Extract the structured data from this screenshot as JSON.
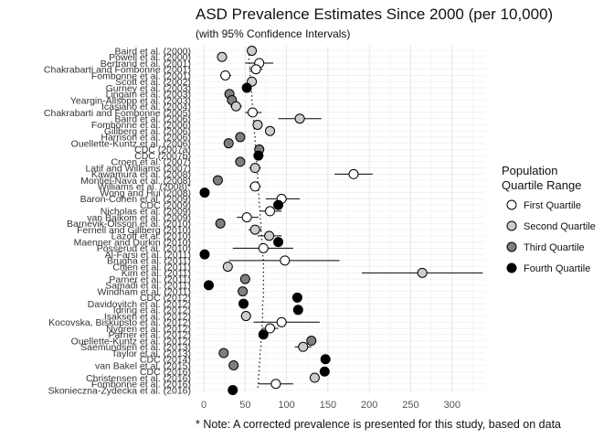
{
  "chart_data": {
    "type": "scatter",
    "title": "ASD Prevalence Estimates Since 2000 (per 10,000)",
    "subtitle": "(with 95% Confidence Intervals)",
    "xlabel": "",
    "ylabel": "",
    "xlim": [
      -10,
      340
    ],
    "xticks": [
      0,
      50,
      100,
      150,
      200,
      250,
      300
    ],
    "grid": true,
    "legend": {
      "title_line1": "Population",
      "title_line2": "Quartile Range",
      "placement": "right",
      "entries": [
        {
          "name": "First Quartile",
          "color": "#ffffff"
        },
        {
          "name": "Second Quartile",
          "color": "#cccccc"
        },
        {
          "name": "Third Quartile",
          "color": "#7f7f7f"
        },
        {
          "name": "Fourth Quartile",
          "color": "#000000"
        }
      ]
    },
    "studies": [
      {
        "study": "Baird et al. (2000)",
        "value": 58,
        "low": 55,
        "high": 62,
        "quartile": 2,
        "trend": 57
      },
      {
        "study": "Powell et al. (2000)",
        "value": 22,
        "low": 20,
        "high": 24,
        "quartile": 2,
        "trend": 54
      },
      {
        "study": "Bertrand et al. (2001)",
        "value": 67,
        "low": 50,
        "high": 84,
        "quartile": 1,
        "trend": 55
      },
      {
        "study": "Chakrabarti and Fombonne (2001)",
        "value": 63,
        "low": 55,
        "high": 71,
        "quartile": 1,
        "trend": 56
      },
      {
        "study": "Fombonne et al. (2001)",
        "value": 26,
        "low": 20,
        "high": 33,
        "quartile": 1,
        "trend": 56
      },
      {
        "study": "Scott et al. (2002)",
        "value": 58,
        "low": 54,
        "high": 62,
        "quartile": 2,
        "trend": 57
      },
      {
        "study": "Gurney et al. (2003)",
        "value": 52,
        "low": 51,
        "high": 53,
        "quartile": 4,
        "trend": 57
      },
      {
        "study": "Lingam et al. (2003)",
        "value": 31,
        "low": 29,
        "high": 33,
        "quartile": 3,
        "trend": 58
      },
      {
        "study": "Yeargin-Allsopp et al. (2003)",
        "value": 34,
        "low": 32,
        "high": 36,
        "quartile": 3,
        "trend": 58
      },
      {
        "study": "Icasiano et al. (2004)",
        "value": 39,
        "low": 32,
        "high": 46,
        "quartile": 2,
        "trend": 59
      },
      {
        "study": "Chakrabarti and Fombonne (2005)",
        "value": 59,
        "low": 50,
        "high": 70,
        "quartile": 1,
        "trend": 60
      },
      {
        "study": "Baird et al. (2006)",
        "value": 116,
        "low": 90,
        "high": 142,
        "quartile": 2,
        "trend": 60
      },
      {
        "study": "Fombonne et al. (2006)",
        "value": 65,
        "low": 59,
        "high": 71,
        "quartile": 2,
        "trend": 61
      },
      {
        "study": "Gillberg et al. (2006)",
        "value": 80,
        "low": 76,
        "high": 84,
        "quartile": 2,
        "trend": 61
      },
      {
        "study": "Harrison et al. (2006)",
        "value": 44,
        "low": 39,
        "high": 48,
        "quartile": 3,
        "trend": 62
      },
      {
        "study": "Ouellette-Kuntz et al. (2006)",
        "value": 30,
        "low": 28,
        "high": 32,
        "quartile": 3,
        "trend": 62
      },
      {
        "study": "CDC (2007a)",
        "value": 67,
        "low": 65,
        "high": 69,
        "quartile": 3,
        "trend": 63
      },
      {
        "study": "CDC (2007b)",
        "value": 66,
        "low": 63,
        "high": 68,
        "quartile": 4,
        "trend": 63
      },
      {
        "study": "Croen et al. (2007)",
        "value": 44,
        "low": 42,
        "high": 46,
        "quartile": 3,
        "trend": 64
      },
      {
        "study": "Latif and Williams (2007)",
        "value": 62,
        "low": 55,
        "high": 69,
        "quartile": 2,
        "trend": 64
      },
      {
        "study": "Kawamura et al. (2008)",
        "value": 181,
        "low": 158,
        "high": 204,
        "quartile": 1,
        "trend": 65
      },
      {
        "study": "Montiel-Nava et al. (2008)",
        "value": 17,
        "low": 15,
        "high": 19,
        "quartile": 3,
        "trend": 65
      },
      {
        "study": "Williams et al. (2008)*",
        "value": 62,
        "low": 55,
        "high": 69,
        "quartile": 1,
        "trend": 66
      },
      {
        "study": "Wong and Hui (2008)",
        "value": 1,
        "low": 0,
        "high": 2,
        "quartile": 4,
        "trend": 66
      },
      {
        "study": "Baron-Cohen et al. (2009)",
        "value": 94,
        "low": 75,
        "high": 116,
        "quartile": 1,
        "trend": 67
      },
      {
        "study": "CDC (2009)",
        "value": 90,
        "low": 86,
        "high": 93,
        "quartile": 4,
        "trend": 67
      },
      {
        "study": "Nicholas et al. (2009)",
        "value": 80,
        "low": 68,
        "high": 94,
        "quartile": 1,
        "trend": 68
      },
      {
        "study": "van Balkom et al. (2009)",
        "value": 52,
        "low": 40,
        "high": 66,
        "quartile": 1,
        "trend": 68
      },
      {
        "study": "Barnevik-Olsson et al. (2010)",
        "value": 20,
        "low": 17,
        "high": 23,
        "quartile": 3,
        "trend": 69
      },
      {
        "study": "Fernell and Gillberg (2010)",
        "value": 62,
        "low": 54,
        "high": 70,
        "quartile": 2,
        "trend": 69
      },
      {
        "study": "Lazoff et al. (2010)",
        "value": 79,
        "low": 65,
        "high": 94,
        "quartile": 2,
        "trend": 70
      },
      {
        "study": "Maenner and Durkin (2010)",
        "value": 90,
        "low": 87,
        "high": 93,
        "quartile": 4,
        "trend": 70
      },
      {
        "study": "Posserud et al. (2010)",
        "value": 72,
        "low": 35,
        "high": 108,
        "quartile": 1,
        "trend": 71
      },
      {
        "study": "Al-Farsi et al. (2011)",
        "value": 1,
        "low": 1,
        "high": 2,
        "quartile": 4,
        "trend": 71
      },
      {
        "study": "Brugha et al. (2011)",
        "value": 98,
        "low": 30,
        "high": 164,
        "quartile": 1,
        "trend": 72
      },
      {
        "study": "Chien et al. (2011)",
        "value": 29,
        "low": 28,
        "high": 30,
        "quartile": 2,
        "trend": 72
      },
      {
        "study": "Kim et al. (2011)",
        "value": 264,
        "low": 191,
        "high": 337,
        "quartile": 2,
        "trend": 72
      },
      {
        "study": "Parner et al. (2011)",
        "value": 50,
        "low": 44,
        "high": 56,
        "quartile": 3,
        "trend": 72
      },
      {
        "study": "Samadi et al. (2011)",
        "value": 6,
        "low": 5,
        "high": 7,
        "quartile": 4,
        "trend": 72
      },
      {
        "study": "Windham et al. (2011)",
        "value": 47,
        "low": 44,
        "high": 50,
        "quartile": 3,
        "trend": 72
      },
      {
        "study": "CDC (2012)",
        "value": 113,
        "low": 110,
        "high": 116,
        "quartile": 4,
        "trend": 72
      },
      {
        "study": "Davidovitch et al. (2012)",
        "value": 48,
        "low": 46,
        "high": 50,
        "quartile": 4,
        "trend": 71
      },
      {
        "study": "Idring et al. (2012)",
        "value": 114,
        "low": 111,
        "high": 117,
        "quartile": 4,
        "trend": 71
      },
      {
        "study": "Isaksen et al. (2012)",
        "value": 51,
        "low": 45,
        "high": 57,
        "quartile": 2,
        "trend": 71
      },
      {
        "study": "Kocovska, Biskupsto et al. (2012)",
        "value": 94,
        "low": 60,
        "high": 140,
        "quartile": 1,
        "trend": 71
      },
      {
        "study": "Nygren et al. (2012)",
        "value": 80,
        "low": 70,
        "high": 90,
        "quartile": 1,
        "trend": 70
      },
      {
        "study": "Parner et al. (2012)",
        "value": 72,
        "low": 70,
        "high": 74,
        "quartile": 4,
        "trend": 70
      },
      {
        "study": "Ouellette-Kuntz et al. (2012)",
        "value": 130,
        "low": 125,
        "high": 135,
        "quartile": 3,
        "trend": 69
      },
      {
        "study": "Saemundsen et al. (2013)",
        "value": 120,
        "low": 110,
        "high": 130,
        "quartile": 2,
        "trend": 69
      },
      {
        "study": "Taylor et al. (2013)",
        "value": 24,
        "low": 22,
        "high": 26,
        "quartile": 3,
        "trend": 68
      },
      {
        "study": "CDC (2014)",
        "value": 147,
        "low": 143,
        "high": 151,
        "quartile": 4,
        "trend": 68
      },
      {
        "study": "van Bakel et al. (2015)",
        "value": 36,
        "low": 34,
        "high": 38,
        "quartile": 3,
        "trend": 67
      },
      {
        "study": "CDC (2016)",
        "value": 146,
        "low": 142,
        "high": 150,
        "quartile": 4,
        "trend": 67
      },
      {
        "study": "Christensen et al. (2016)",
        "value": 134,
        "low": 128,
        "high": 140,
        "quartile": 2,
        "trend": 66
      },
      {
        "study": "Fombonne et al. (2016)",
        "value": 87,
        "low": 66,
        "high": 108,
        "quartile": 1,
        "trend": 66
      },
      {
        "study": "Skonieczna-Zydecka et al. (2016)",
        "value": 35,
        "low": 33,
        "high": 37,
        "quartile": 4,
        "trend": 65
      }
    ],
    "footnote": "* Note: A corrected prevalence is presented for this study, based on data"
  }
}
